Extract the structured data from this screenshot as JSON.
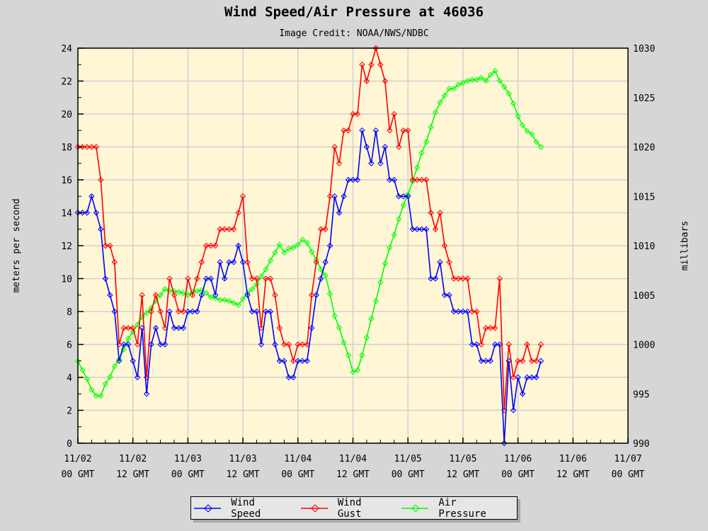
{
  "chart_data": {
    "type": "line",
    "title": "Wind Speed/Air Pressure at 46036",
    "subtitle": "Image Credit: NOAA/NWS/NDBC",
    "ylabel": "meters per second",
    "y2label": "millibars",
    "ylim": [
      0,
      24
    ],
    "y2lim": [
      990,
      1030
    ],
    "yticks": [
      "0",
      "2",
      "4",
      "6",
      "8",
      "10",
      "12",
      "14",
      "16",
      "18",
      "20",
      "22",
      "24"
    ],
    "y2ticks": [
      "990",
      "995",
      "1000",
      "1005",
      "1010",
      "1015",
      "1020",
      "1025",
      "1030"
    ],
    "xlim": [
      "11/02 00",
      "11/07 00"
    ],
    "xticks": [
      {
        "date": "11/02",
        "time": "00 GMT"
      },
      {
        "date": "11/02",
        "time": "12 GMT"
      },
      {
        "date": "11/03",
        "time": "00 GMT"
      },
      {
        "date": "11/03",
        "time": "12 GMT"
      },
      {
        "date": "11/04",
        "time": "00 GMT"
      },
      {
        "date": "11/04",
        "time": "12 GMT"
      },
      {
        "date": "11/05",
        "time": "00 GMT"
      },
      {
        "date": "11/05",
        "time": "12 GMT"
      },
      {
        "date": "11/06",
        "time": "00 GMT"
      },
      {
        "date": "11/06",
        "time": "12 GMT"
      },
      {
        "date": "11/07",
        "time": "00 GMT"
      }
    ],
    "grid": true,
    "legend_position": "bottom",
    "x": [
      "11/02 00",
      "11/02 01",
      "11/02 02",
      "11/02 03",
      "11/02 04",
      "11/02 05",
      "11/02 06",
      "11/02 07",
      "11/02 08",
      "11/02 09",
      "11/02 10",
      "11/02 11",
      "11/02 12",
      "11/02 13",
      "11/02 14",
      "11/02 15",
      "11/02 16",
      "11/02 17",
      "11/02 18",
      "11/02 19",
      "11/02 20",
      "11/02 21",
      "11/02 22",
      "11/02 23",
      "11/03 00",
      "11/03 01",
      "11/03 02",
      "11/03 03",
      "11/03 04",
      "11/03 05",
      "11/03 06",
      "11/03 07",
      "11/03 08",
      "11/03 09",
      "11/03 10",
      "11/03 11",
      "11/03 12",
      "11/03 13",
      "11/03 14",
      "11/03 15",
      "11/03 16",
      "11/03 17",
      "11/03 18",
      "11/03 19",
      "11/03 20",
      "11/03 21",
      "11/03 22",
      "11/03 23",
      "11/04 00",
      "11/04 01",
      "11/04 02",
      "11/04 03",
      "11/04 04",
      "11/04 05",
      "11/04 06",
      "11/04 07",
      "11/04 08",
      "11/04 09",
      "11/04 10",
      "11/04 11",
      "11/04 12",
      "11/04 13",
      "11/04 14",
      "11/04 15",
      "11/04 16",
      "11/04 17",
      "11/04 18",
      "11/04 19",
      "11/04 20",
      "11/04 21",
      "11/04 22",
      "11/04 23",
      "11/05 00",
      "11/05 01",
      "11/05 02",
      "11/05 03",
      "11/05 04",
      "11/05 05",
      "11/05 06",
      "11/05 07",
      "11/05 08",
      "11/05 09",
      "11/05 10",
      "11/05 11",
      "11/05 12",
      "11/05 13",
      "11/05 14",
      "11/05 15",
      "11/05 16",
      "11/05 17",
      "11/05 18",
      "11/05 19",
      "11/05 20",
      "11/05 21",
      "11/05 22",
      "11/05 23",
      "11/06 00",
      "11/06 01",
      "11/06 02",
      "11/06 03",
      "11/06 04",
      "11/06 05"
    ],
    "series": [
      {
        "name": "Wind Speed",
        "axis": "left",
        "color": "#0000ff",
        "values": [
          14,
          14,
          14,
          15,
          14,
          13,
          10,
          9,
          8,
          5,
          6,
          6,
          5,
          4,
          7,
          3,
          6,
          7,
          6,
          6,
          8,
          7,
          7,
          7,
          8,
          8,
          8,
          9,
          10,
          10,
          9,
          11,
          10,
          11,
          11,
          12,
          11,
          9,
          8,
          8,
          6,
          8,
          8,
          6,
          5,
          5,
          4,
          4,
          5,
          5,
          5,
          7,
          9,
          10,
          11,
          12,
          15,
          14,
          15,
          16,
          16,
          16,
          19,
          18,
          17,
          19,
          17,
          18,
          16,
          16,
          15,
          15,
          15,
          13,
          13,
          13,
          13,
          10,
          10,
          11,
          9,
          9,
          8,
          8,
          8,
          8,
          6,
          6,
          5,
          5,
          5,
          6,
          6,
          0,
          5,
          2,
          4,
          3,
          4,
          4,
          4,
          5
        ]
      },
      {
        "name": "Wind Gust",
        "axis": "left",
        "color": "#ff0000",
        "values": [
          18,
          18,
          18,
          18,
          18,
          16,
          12,
          12,
          11,
          6,
          7,
          7,
          7,
          6,
          9,
          4,
          8,
          9,
          8,
          7,
          10,
          9,
          8,
          8,
          10,
          9,
          10,
          11,
          12,
          12,
          12,
          13,
          13,
          13,
          13,
          14,
          15,
          11,
          10,
          10,
          7,
          10,
          10,
          9,
          7,
          6,
          6,
          5,
          6,
          6,
          6,
          9,
          11,
          13,
          13,
          15,
          18,
          17,
          19,
          19,
          20,
          20,
          23,
          22,
          23,
          24,
          23,
          22,
          19,
          20,
          18,
          19,
          19,
          16,
          16,
          16,
          16,
          14,
          13,
          14,
          12,
          11,
          10,
          10,
          10,
          10,
          8,
          8,
          6,
          7,
          7,
          7,
          10,
          2,
          6,
          4,
          5,
          5,
          6,
          5,
          5,
          6
        ]
      },
      {
        "name": "Air Pressure",
        "axis": "right",
        "color": "#00ff00",
        "values": [
          998.3,
          997.4,
          996.5,
          995.4,
          994.8,
          994.8,
          996.0,
          996.7,
          997.8,
          998.5,
          999.5,
          1000.6,
          1001.3,
          1002.0,
          1002.8,
          1003.2,
          1003.7,
          1004.4,
          1005.0,
          1005.6,
          1005.4,
          1005.4,
          1005.3,
          1005.2,
          1005.0,
          1005.3,
          1005.4,
          1005.5,
          1005.2,
          1004.8,
          1004.7,
          1004.5,
          1004.5,
          1004.4,
          1004.2,
          1004.0,
          1004.6,
          1005.2,
          1005.6,
          1006.1,
          1006.9,
          1007.6,
          1008.5,
          1009.3,
          1010.1,
          1009.3,
          1009.7,
          1009.8,
          1010.1,
          1010.6,
          1010.3,
          1009.4,
          1008.6,
          1007.6,
          1007.0,
          1005.1,
          1002.9,
          1001.7,
          1000.2,
          998.9,
          997.2,
          997.4,
          998.9,
          1000.7,
          1002.6,
          1004.4,
          1006.3,
          1008.2,
          1009.8,
          1011.1,
          1012.7,
          1014.1,
          1015.2,
          1016.5,
          1017.9,
          1019.4,
          1020.5,
          1022.0,
          1023.5,
          1024.5,
          1025.2,
          1025.9,
          1025.9,
          1026.3,
          1026.5,
          1026.7,
          1026.8,
          1026.8,
          1027.0,
          1026.7,
          1027.3,
          1027.7,
          1026.7,
          1026.1,
          1025.4,
          1024.4,
          1023.1,
          1022.2,
          1021.6,
          1021.3,
          1020.5,
          1020.0
        ]
      }
    ],
    "plot_background": "#fff6d5"
  }
}
